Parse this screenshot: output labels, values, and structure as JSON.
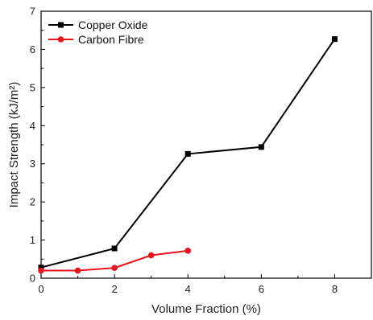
{
  "chart_data": {
    "type": "line",
    "xlabel": "Volume Fraction (%)",
    "ylabel": "Impact Strength (kJ/m²)",
    "xlim": [
      0,
      9
    ],
    "ylim": [
      0,
      7
    ],
    "x_ticks": [
      0,
      2,
      4,
      6,
      8
    ],
    "y_ticks": [
      0,
      1,
      2,
      3,
      4,
      5,
      6,
      7
    ],
    "grid": false,
    "legend_position": "top-left",
    "series": [
      {
        "name": "Copper Oxide",
        "color": "#000000",
        "marker": "square",
        "x": [
          0,
          2,
          4,
          6,
          8
        ],
        "y": [
          0.28,
          0.78,
          3.26,
          3.44,
          6.27
        ]
      },
      {
        "name": "Carbon Fibre",
        "color": "#e8141c",
        "marker": "circle",
        "x": [
          0,
          1,
          2,
          3,
          4
        ],
        "y": [
          0.2,
          0.2,
          0.27,
          0.6,
          0.72
        ]
      }
    ]
  }
}
